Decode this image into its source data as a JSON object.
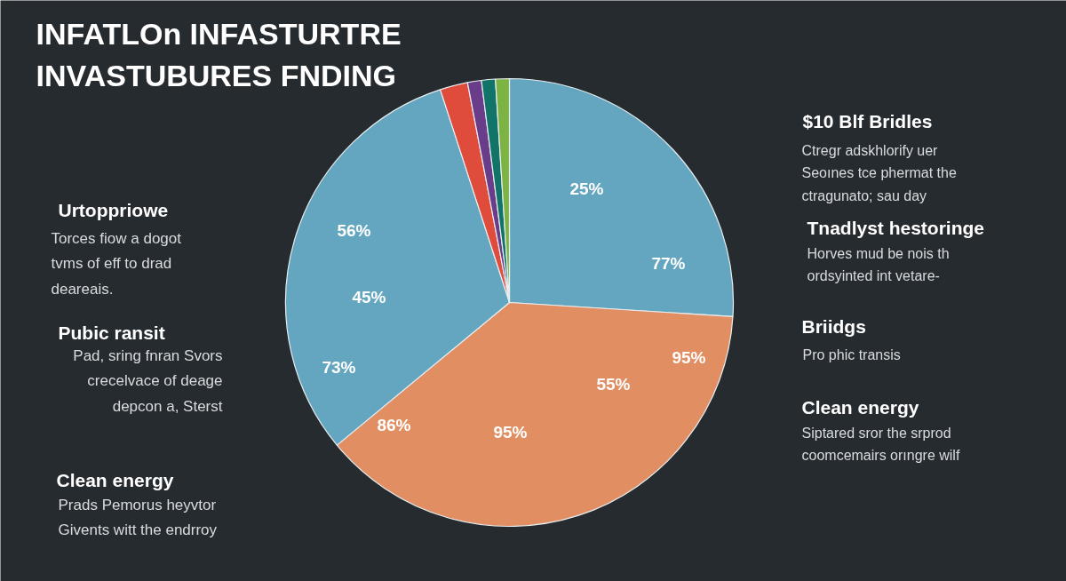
{
  "chart_data": {
    "type": "pie",
    "title": "INFATLOn INFASTURTRE\nINVASTUBURES FNDING",
    "categories": [
      null,
      null,
      null,
      null,
      null,
      null,
      null
    ],
    "values": [
      26,
      38,
      31,
      2,
      1,
      1,
      1
    ],
    "colors": [
      "#64a6c0",
      "#e08e62",
      "#64a6c0",
      "#e04c3c",
      "#6a3d8a",
      "#127468",
      "#7cb342"
    ],
    "annotations": [
      "Urtoppriowe",
      "Torces fiow a dogot\ntvms of eff to drad\ndeareais.",
      "Pubic ransit",
      "Pad, sring fnran Svors\ncrecelvace of deage\ndepcon a, Sterst",
      "Clean energy",
      "Prads Pemorus heyvtor\nGivents witt the endrroy",
      "$10 Blf Bridles",
      "Ctregr adskhlorify uer\nSeoınes tce phermat the\nctragunato; sau day",
      "Tnadlyst hestoringe",
      "Horves mud be nois th\nordsyinted int vetare-",
      "Briidgs",
      "Pro phic transis",
      "Clean energy",
      "Siptared sror the srprod\ncoomcemairs orıngre wilf",
      "56%",
      "45%",
      "73%",
      "25%",
      "77%",
      "95%",
      "55%",
      "86%",
      "95%"
    ]
  }
}
